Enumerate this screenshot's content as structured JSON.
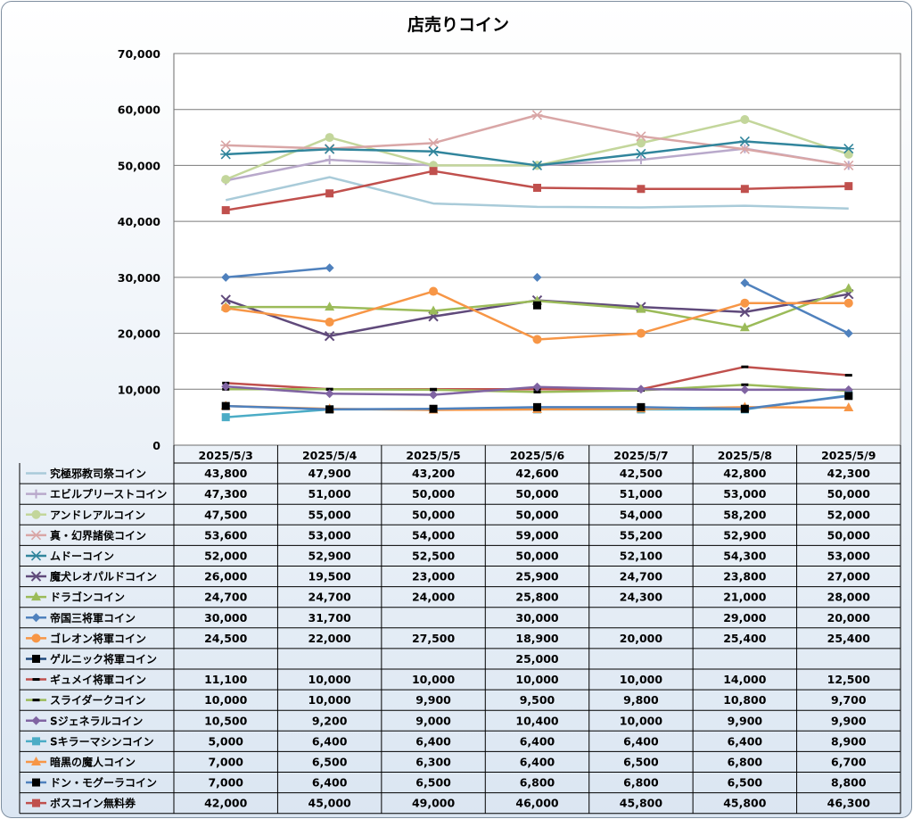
{
  "chart_data": {
    "type": "line",
    "title": "店売りコイン",
    "categories": [
      "2025/5/3",
      "2025/5/4",
      "2025/5/5",
      "2025/5/6",
      "2025/5/7",
      "2025/5/8",
      "2025/5/9"
    ],
    "y_ticks": [
      "0",
      "10,000",
      "20,000",
      "30,000",
      "40,000",
      "50,000",
      "60,000",
      "70,000"
    ],
    "ylim": [
      0,
      70000
    ],
    "grid": true,
    "legend": "data-table",
    "series": [
      {
        "name": "究極邪教司祭コイン",
        "color": "#a9cbd9",
        "marker": "none",
        "values": [
          43800,
          47900,
          43200,
          42600,
          42500,
          42800,
          42300
        ],
        "labels": [
          "43,800",
          "47,900",
          "43,200",
          "42,600",
          "42,500",
          "42,800",
          "42,300"
        ]
      },
      {
        "name": "エビルプリーストコイン",
        "color": "#b9a9cb",
        "marker": "plus",
        "values": [
          47300,
          51000,
          50000,
          50000,
          51000,
          53000,
          50000
        ],
        "labels": [
          "47,300",
          "51,000",
          "50,000",
          "50,000",
          "51,000",
          "53,000",
          "50,000"
        ]
      },
      {
        "name": "アンドレアルコイン",
        "color": "#c3d69b",
        "marker": "circle",
        "values": [
          47500,
          55000,
          50000,
          50000,
          54000,
          58200,
          52000
        ],
        "labels": [
          "47,500",
          "55,000",
          "50,000",
          "50,000",
          "54,000",
          "58,200",
          "52,000"
        ]
      },
      {
        "name": "真・幻界諸侯コイン",
        "color": "#d9a6a6",
        "marker": "star",
        "values": [
          53600,
          53000,
          54000,
          59000,
          55200,
          52900,
          50000
        ],
        "labels": [
          "53,600",
          "53,000",
          "54,000",
          "59,000",
          "55,200",
          "52,900",
          "50,000"
        ]
      },
      {
        "name": "ムドーコイン",
        "color": "#31859c",
        "marker": "star",
        "values": [
          52000,
          52900,
          52500,
          50000,
          52100,
          54300,
          53000
        ],
        "labels": [
          "52,000",
          "52,900",
          "52,500",
          "50,000",
          "52,100",
          "54,300",
          "53,000"
        ]
      },
      {
        "name": "魔犬レオパルドコイン",
        "color": "#604a7b",
        "marker": "x",
        "values": [
          26000,
          19500,
          23000,
          25900,
          24700,
          23800,
          27000
        ],
        "labels": [
          "26,000",
          "19,500",
          "23,000",
          "25,900",
          "24,700",
          "23,800",
          "27,000"
        ]
      },
      {
        "name": "ドラゴンコイン",
        "color": "#9bbb59",
        "marker": "triangle",
        "values": [
          24700,
          24700,
          24000,
          25800,
          24300,
          21000,
          28000
        ],
        "labels": [
          "24,700",
          "24,700",
          "24,000",
          "25,800",
          "24,300",
          "21,000",
          "28,000"
        ]
      },
      {
        "name": "帝国三将軍コイン",
        "color": "#4f81bd",
        "marker": "diamond",
        "values": [
          30000,
          31700,
          null,
          30000,
          null,
          29000,
          20000
        ],
        "labels": [
          "30,000",
          "31,700",
          "",
          "30,000",
          "",
          "29,000",
          "20,000"
        ]
      },
      {
        "name": "ゴレオン将軍コイン",
        "color": "#f79646",
        "marker": "circle",
        "values": [
          24500,
          22000,
          27500,
          18900,
          20000,
          25400,
          25400
        ],
        "labels": [
          "24,500",
          "22,000",
          "27,500",
          "18,900",
          "20,000",
          "25,400",
          "25,400"
        ]
      },
      {
        "name": "ゲルニック将軍コイン",
        "color": "#1f497d",
        "marker": "square-black",
        "values": [
          null,
          null,
          null,
          25000,
          null,
          null,
          null
        ],
        "labels": [
          "",
          "",
          "",
          "25,000",
          "",
          "",
          ""
        ]
      },
      {
        "name": "ギュメイ将軍コイン",
        "color": "#c0504d",
        "marker": "dash",
        "values": [
          11100,
          10000,
          10000,
          10000,
          10000,
          14000,
          12500
        ],
        "labels": [
          "11,100",
          "10,000",
          "10,000",
          "10,000",
          "10,000",
          "14,000",
          "12,500"
        ]
      },
      {
        "name": "スライダークコイン",
        "color": "#9bbb59",
        "marker": "dash",
        "values": [
          10000,
          10000,
          9900,
          9500,
          9800,
          10800,
          9700
        ],
        "labels": [
          "10,000",
          "10,000",
          "9,900",
          "9,500",
          "9,800",
          "10,800",
          "9,700"
        ]
      },
      {
        "name": "Sジェネラルコイン",
        "color": "#8064a2",
        "marker": "diamond",
        "values": [
          10500,
          9200,
          9000,
          10400,
          10000,
          9900,
          9900
        ],
        "labels": [
          "10,500",
          "9,200",
          "9,000",
          "10,400",
          "10,000",
          "9,900",
          "9,900"
        ]
      },
      {
        "name": "Sキラーマシンコイン",
        "color": "#4bacc6",
        "marker": "square",
        "values": [
          5000,
          6400,
          6400,
          6400,
          6400,
          6400,
          8900
        ],
        "labels": [
          "5,000",
          "6,400",
          "6,400",
          "6,400",
          "6,400",
          "6,400",
          "8,900"
        ]
      },
      {
        "name": "暗黒の魔人コイン",
        "color": "#f79646",
        "marker": "triangle",
        "values": [
          7000,
          6500,
          6300,
          6400,
          6500,
          6800,
          6700
        ],
        "labels": [
          "7,000",
          "6,500",
          "6,300",
          "6,400",
          "6,500",
          "6,800",
          "6,700"
        ]
      },
      {
        "name": "ドン・モグーラコイン",
        "color": "#4f81bd",
        "marker": "square-black",
        "values": [
          7000,
          6400,
          6500,
          6800,
          6800,
          6500,
          8800
        ],
        "labels": [
          "7,000",
          "6,400",
          "6,500",
          "6,800",
          "6,800",
          "6,500",
          "8,800"
        ]
      },
      {
        "name": "ボスコイン無料券",
        "color": "#c0504d",
        "marker": "square",
        "values": [
          42000,
          45000,
          49000,
          46000,
          45800,
          45800,
          46300
        ],
        "labels": [
          "42,000",
          "45,000",
          "49,000",
          "46,000",
          "45,800",
          "45,800",
          "46,300"
        ]
      }
    ]
  }
}
